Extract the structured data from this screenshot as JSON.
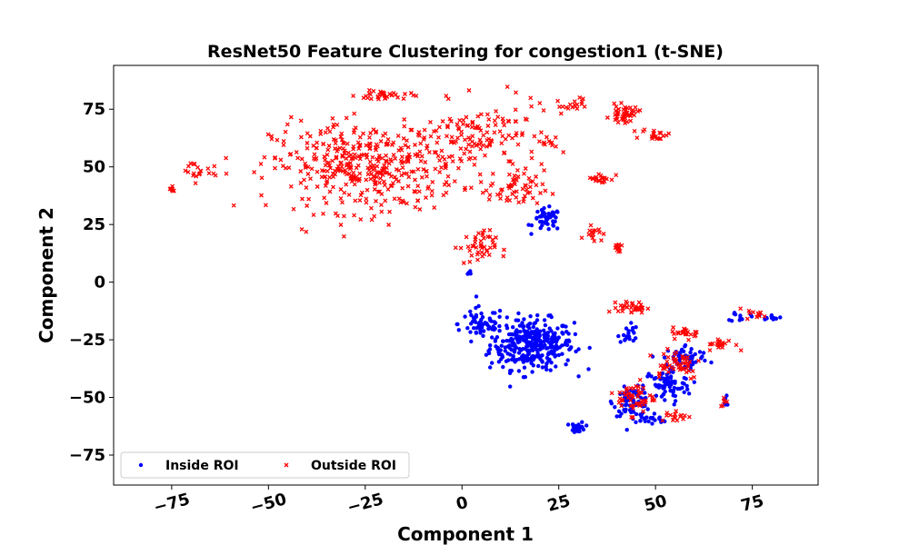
{
  "chart_data": {
    "type": "scatter",
    "title": "ResNet50 Feature Clustering for congestion1 (t-SNE)",
    "xlabel": "Component 1",
    "ylabel": "Component 2",
    "xlim": [
      -90,
      92
    ],
    "ylim": [
      -88,
      94
    ],
    "xticks": [
      "−75",
      "−50",
      "−25",
      "0",
      "25",
      "50",
      "75"
    ],
    "yticks": [
      "75",
      "50",
      "25",
      "0",
      "−25",
      "−50",
      "−75"
    ],
    "x_tick_values": [
      -75,
      -50,
      -25,
      0,
      25,
      50,
      75
    ],
    "y_tick_values": [
      75,
      50,
      25,
      0,
      -25,
      -50,
      -75
    ],
    "grid": false,
    "legend_position": "lower-left",
    "series": [
      {
        "name": "Inside ROI",
        "marker": "circle",
        "color": "#0000ff",
        "clusters": [
          {
            "center": [
              18,
              -27
            ],
            "spread": [
              9,
              9
            ],
            "count": 340
          },
          {
            "center": [
              5,
              -18
            ],
            "spread": [
              5,
              6
            ],
            "count": 60
          },
          {
            "center": [
              22,
              27
            ],
            "spread": [
              3,
              4
            ],
            "count": 45
          },
          {
            "center": [
              2,
              4
            ],
            "spread": [
              1,
              1
            ],
            "count": 6
          },
          {
            "center": [
              30,
              -63
            ],
            "spread": [
              1.5,
              2
            ],
            "count": 25
          },
          {
            "center": [
              44,
              -52
            ],
            "spread": [
              4,
              5
            ],
            "count": 80
          },
          {
            "center": [
              53,
              -45
            ],
            "spread": [
              5,
              6
            ],
            "count": 70
          },
          {
            "center": [
              58,
              -33
            ],
            "spread": [
              5,
              5
            ],
            "count": 60
          },
          {
            "center": [
              43,
              -22
            ],
            "spread": [
              2,
              4
            ],
            "count": 20
          },
          {
            "center": [
              72,
              -15
            ],
            "spread": [
              2,
              2
            ],
            "count": 12
          },
          {
            "center": [
              80,
              -15
            ],
            "spread": [
              2,
              1
            ],
            "count": 12
          },
          {
            "center": [
              48,
              -60
            ],
            "spread": [
              5,
              2
            ],
            "count": 20
          },
          {
            "center": [
              68,
              -52
            ],
            "spread": [
              1,
              2
            ],
            "count": 8
          }
        ]
      },
      {
        "name": "Outside ROI",
        "marker": "x",
        "color": "#ff0000",
        "clusters": [
          {
            "center": [
              -25,
              50
            ],
            "spread": [
              20,
              16
            ],
            "count": 420
          },
          {
            "center": [
              5,
              62
            ],
            "spread": [
              13,
              13
            ],
            "count": 130
          },
          {
            "center": [
              -68,
              48
            ],
            "spread": [
              4,
              4
            ],
            "count": 20
          },
          {
            "center": [
              -75,
              40
            ],
            "spread": [
              1,
              1
            ],
            "count": 8
          },
          {
            "center": [
              -20,
              81
            ],
            "spread": [
              6,
              2
            ],
            "count": 35
          },
          {
            "center": [
              42,
              73
            ],
            "spread": [
              3,
              3
            ],
            "count": 45
          },
          {
            "center": [
              50,
              64
            ],
            "spread": [
              3,
              2
            ],
            "count": 20
          },
          {
            "center": [
              22,
              61
            ],
            "spread": [
              2,
              2
            ],
            "count": 10
          },
          {
            "center": [
              36,
              45
            ],
            "spread": [
              3,
              2
            ],
            "count": 20
          },
          {
            "center": [
              34,
              22
            ],
            "spread": [
              2,
              3
            ],
            "count": 15
          },
          {
            "center": [
              40,
              14
            ],
            "spread": [
              1,
              3
            ],
            "count": 12
          },
          {
            "center": [
              4,
              15
            ],
            "spread": [
              4,
              6
            ],
            "count": 45
          },
          {
            "center": [
              14,
              40
            ],
            "spread": [
              6,
              7
            ],
            "count": 55
          },
          {
            "center": [
              28,
              77
            ],
            "spread": [
              7,
              3
            ],
            "count": 20
          },
          {
            "center": [
              44,
              -11
            ],
            "spread": [
              3,
              2
            ],
            "count": 35
          },
          {
            "center": [
              45,
              -50
            ],
            "spread": [
              4,
              6
            ],
            "count": 50
          },
          {
            "center": [
              55,
              -35
            ],
            "spread": [
              6,
              6
            ],
            "count": 50
          },
          {
            "center": [
              58,
              -22
            ],
            "spread": [
              3,
              2
            ],
            "count": 25
          },
          {
            "center": [
              67,
              -27
            ],
            "spread": [
              3,
              2
            ],
            "count": 20
          },
          {
            "center": [
              76,
              -14
            ],
            "spread": [
              2,
              2
            ],
            "count": 12
          },
          {
            "center": [
              55,
              -58
            ],
            "spread": [
              4,
              2
            ],
            "count": 15
          },
          {
            "center": [
              68,
              -52
            ],
            "spread": [
              1,
              2
            ],
            "count": 6
          }
        ]
      }
    ]
  }
}
